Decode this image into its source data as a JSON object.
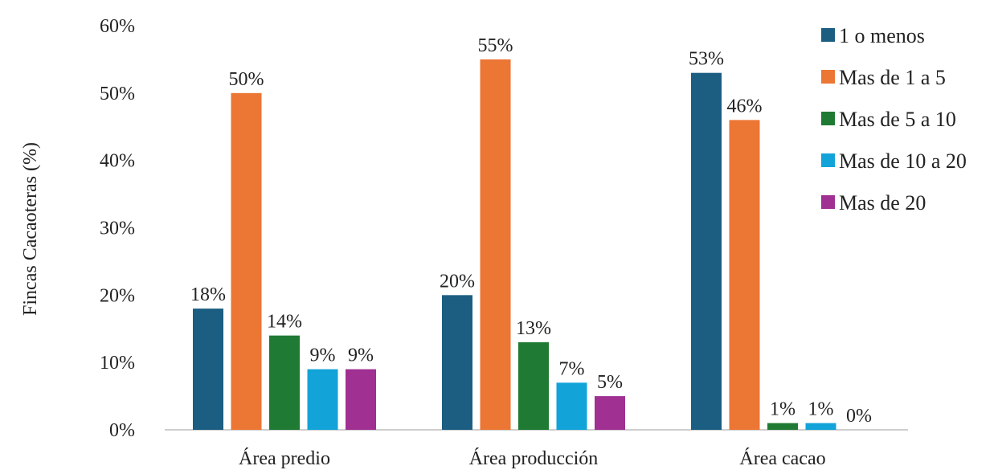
{
  "chart_data": {
    "type": "bar",
    "categories": [
      "Área predio",
      "Área producción",
      "Área cacao"
    ],
    "series": [
      {
        "name": "1 o menos",
        "values": [
          18,
          20,
          53
        ],
        "labels": [
          "18%",
          "20%",
          "53%"
        ],
        "color": "#1b5e82"
      },
      {
        "name": "Mas de 1 a 5",
        "values": [
          50,
          55,
          46
        ],
        "labels": [
          "50%",
          "55%",
          "46%"
        ],
        "color": "#ec7634"
      },
      {
        "name": "Mas de 5 a 10",
        "values": [
          14,
          13,
          1
        ],
        "labels": [
          "14%",
          "13%",
          "1%"
        ],
        "color": "#1f7a33"
      },
      {
        "name": "Mas de 10 a 20",
        "values": [
          9,
          7,
          1
        ],
        "labels": [
          "9%",
          "7%",
          "1%"
        ],
        "color": "#12a3d9"
      },
      {
        "name": "Mas de 20",
        "values": [
          9,
          5,
          0
        ],
        "labels": [
          "9%",
          "5%",
          "0%"
        ],
        "color": "#a03092"
      }
    ],
    "ylabel": "Fincas Cacaoteras (%)",
    "xlabel": "",
    "ylim": [
      0,
      60
    ],
    "yticks": [
      "0%",
      "10%",
      "20%",
      "30%",
      "40%",
      "50%",
      "60%"
    ],
    "grid": false,
    "legend_position": "right"
  }
}
